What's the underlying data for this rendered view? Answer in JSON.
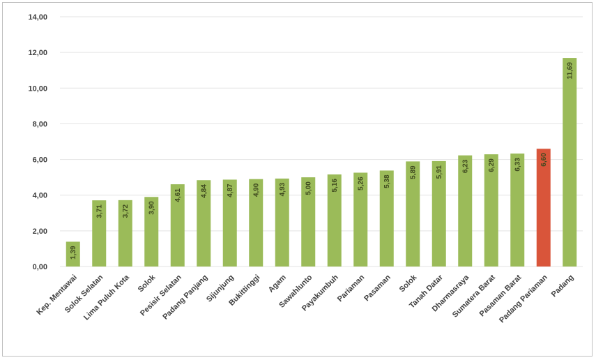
{
  "chart_data": {
    "type": "bar",
    "title": "",
    "xlabel": "",
    "ylabel": "",
    "ylim": [
      0,
      14
    ],
    "yticks": [
      "0,00",
      "2,00",
      "4,00",
      "6,00",
      "8,00",
      "10,00",
      "12,00",
      "14,00"
    ],
    "grid": true,
    "legend": "none",
    "colors": {
      "default": "#9bbb59",
      "highlight": "#d9553a",
      "grid": "#e3e3e3"
    },
    "highlight_category": "Padang Pariaman",
    "categories": [
      "Kep. Mentawai",
      "Solok Selatan",
      "Lima Puluh Kota",
      "Solok",
      "Pesisir Selatan",
      "Padang Panjang",
      "Sijunjung",
      "Bukittinggi",
      "Agam",
      "Sawahlunto",
      "Payakumbuh",
      "Pariaman",
      "Pasaman",
      "Solok",
      "Tanah Datar",
      "Dharmasraya",
      "Sumatera Barat",
      "Pasaman Barat",
      "Padang Pariaman",
      "Padang"
    ],
    "values": [
      1.39,
      3.71,
      3.72,
      3.9,
      4.61,
      4.84,
      4.87,
      4.9,
      4.93,
      5.0,
      5.16,
      5.26,
      5.38,
      5.89,
      5.91,
      6.23,
      6.29,
      6.33,
      6.6,
      11.69
    ],
    "data_labels": [
      "1,39",
      "3,71",
      "3,72",
      "3,90",
      "4,61",
      "4,84",
      "4,87",
      "4,90",
      "4,93",
      "5,00",
      "5,16",
      "5,26",
      "5,38",
      "5,89",
      "5,91",
      "6,23",
      "6,29",
      "6,33",
      "6,60",
      "11,69"
    ]
  }
}
